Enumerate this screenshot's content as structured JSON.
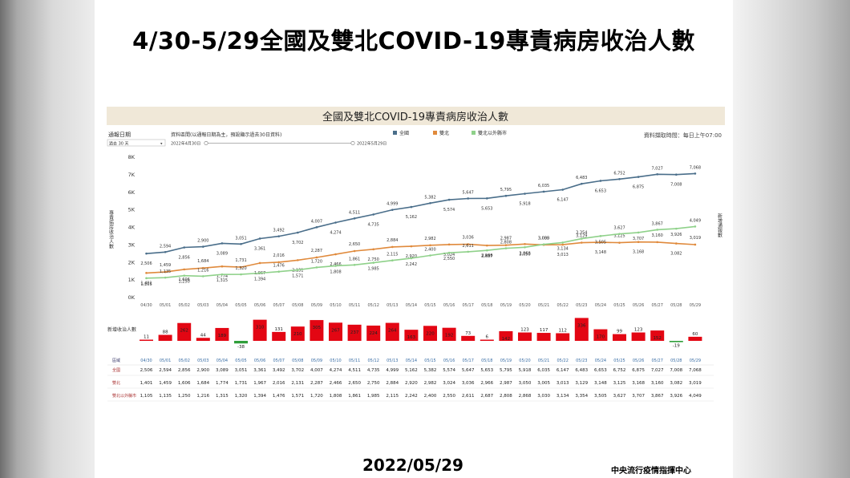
{
  "slide": {
    "title": "4/30-5/29全國及雙北COVID-19專責病房收治人數",
    "date": "2022/05/29",
    "source": "中央流行疫情指揮中心"
  },
  "dashboard": {
    "title": "全國及雙北COVID-19專責病房收治人數",
    "report_date_label": "通報日期",
    "report_date_value": "過去 30 天",
    "range_label": "資料區間(以通報日期為主，預設顯示過去30日資料)",
    "range_start": "2022年4月30日",
    "range_end": "2022年5月29日",
    "update_note": "資料擷取時間：每日上午07:00",
    "new_admissions_label": "新增收治人數",
    "right_axis_label": "新增通報數",
    "table_header_label": "區域"
  },
  "colors": {
    "national": "#4a6e8a",
    "taipei": "#e08a3c",
    "outside": "#8fd18a",
    "bar": "#e30613",
    "bar_negative": "#2f9e3a",
    "title_band": "#f0e8d8"
  },
  "chart_data": {
    "type": "line",
    "title": "全國及雙北COVID-19專責病房收治人數",
    "ylabel": "專責病房收治人數",
    "ylim": [
      0,
      8000
    ],
    "y_ticks": [
      "0K",
      "1K",
      "2K",
      "3K",
      "4K",
      "5K",
      "6K",
      "7K",
      "8K"
    ],
    "x": [
      "04/30",
      "05/01",
      "05/02",
      "05/03",
      "05/04",
      "05/05",
      "05/06",
      "05/07",
      "05/08",
      "05/09",
      "05/10",
      "05/11",
      "05/12",
      "05/13",
      "05/14",
      "05/15",
      "05/16",
      "05/17",
      "05/18",
      "05/19",
      "05/20",
      "05/21",
      "05/22",
      "05/23",
      "05/24",
      "05/25",
      "05/26",
      "05/27",
      "05/28",
      "05/29"
    ],
    "series": [
      {
        "name": "全國",
        "color": "#4a6e8a",
        "values": [
          2506,
          2594,
          2856,
          2900,
          3089,
          3051,
          3361,
          3492,
          3702,
          4007,
          4274,
          4511,
          4735,
          4999,
          5162,
          5382,
          5574,
          5647,
          5653,
          5795,
          5918,
          6035,
          6147,
          6483,
          6653,
          6752,
          6875,
          7027,
          7008,
          7068
        ]
      },
      {
        "name": "雙北",
        "color": "#e08a3c",
        "values": [
          1401,
          1459,
          1606,
          1684,
          1774,
          1731,
          1967,
          2016,
          2131,
          2287,
          2466,
          2650,
          2750,
          2884,
          2920,
          2982,
          3024,
          3036,
          2966,
          2987,
          3050,
          3005,
          3013,
          3129,
          3148,
          3125,
          3168,
          3160,
          3082,
          3019
        ]
      },
      {
        "name": "雙北以外縣市",
        "color": "#8fd18a",
        "values": [
          1105,
          1135,
          1250,
          1216,
          1315,
          1320,
          1394,
          1476,
          1571,
          1720,
          1808,
          1861,
          1985,
          2115,
          2242,
          2400,
          2550,
          2611,
          2687,
          2808,
          2868,
          3030,
          3134,
          3354,
          3505,
          3627,
          3707,
          3867,
          3926,
          4049
        ]
      }
    ],
    "new_admissions": {
      "name": "新增收治人數",
      "values": [
        11,
        88,
        262,
        44,
        189,
        -38,
        310,
        131,
        210,
        305,
        267,
        237,
        224,
        264,
        163,
        220,
        192,
        73,
        6,
        142,
        123,
        117,
        112,
        336,
        170,
        99,
        123,
        152,
        -19,
        60
      ]
    },
    "legend_position": "top",
    "grid": false
  }
}
